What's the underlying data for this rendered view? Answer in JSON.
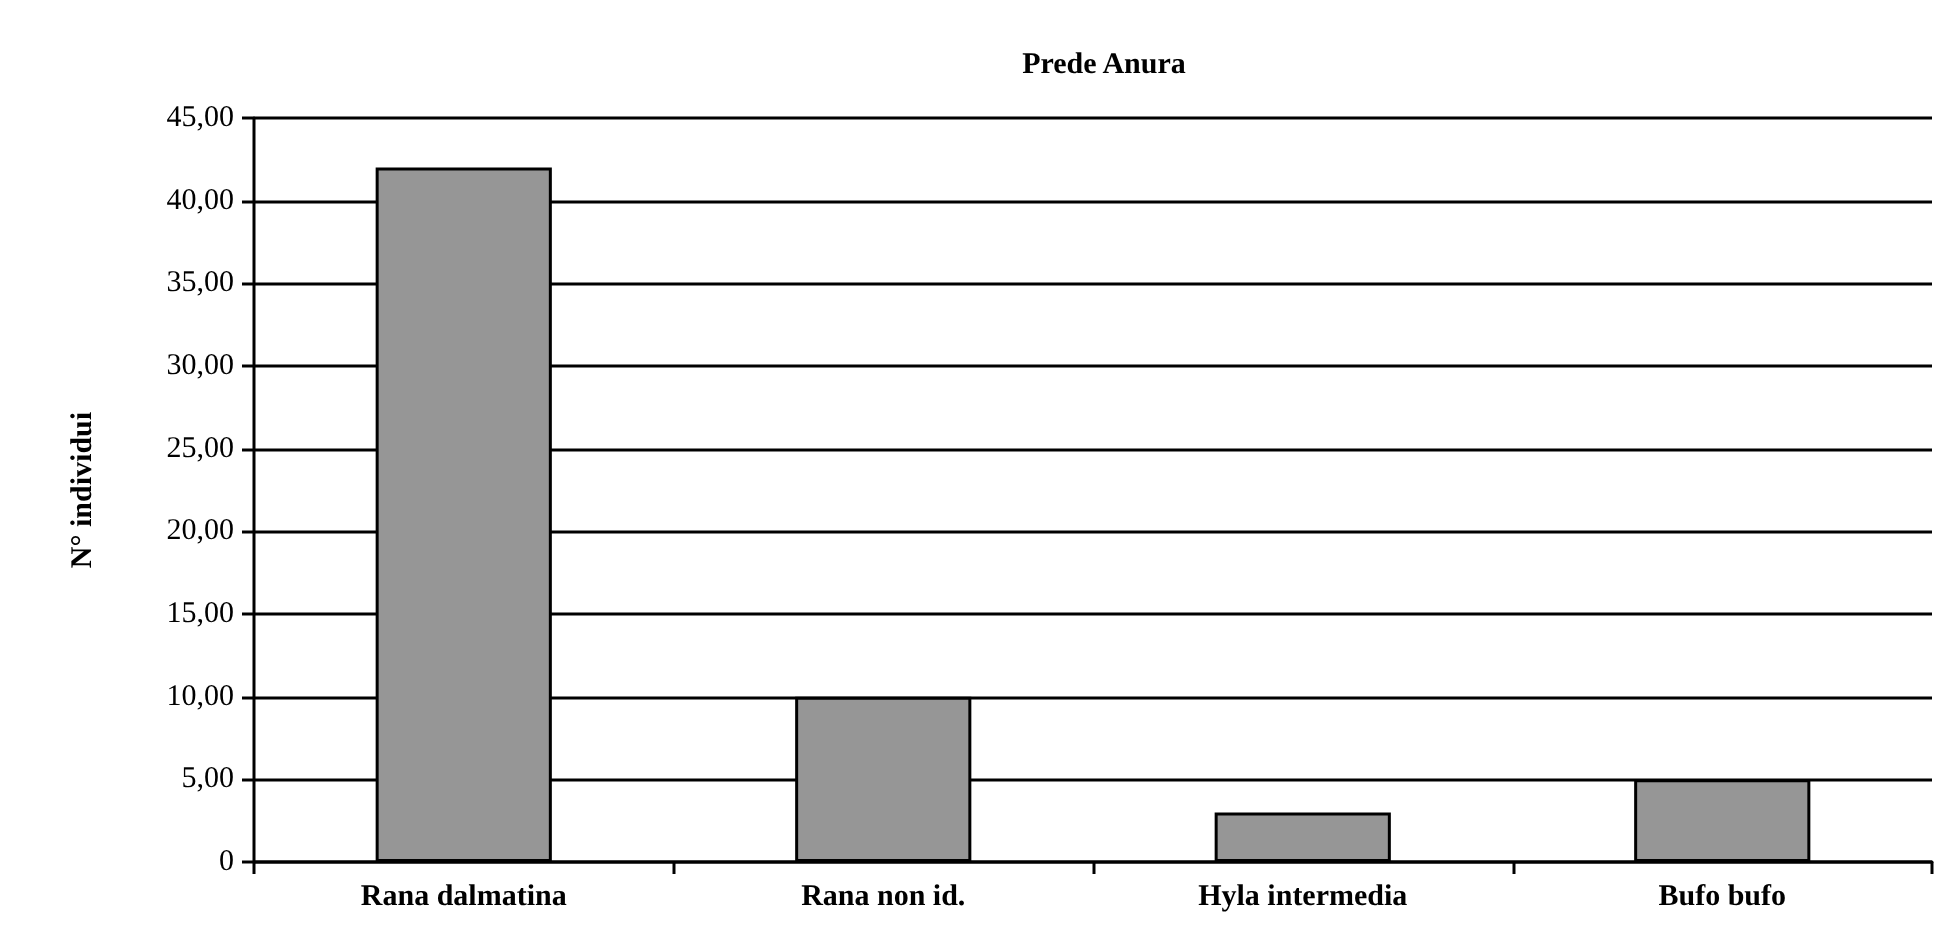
{
  "chart_data": {
    "type": "bar",
    "title": "Prede Anura",
    "ylabel": "N° individui",
    "categories": [
      "Rana dalmatina",
      "Rana non id.",
      "Hyla intermedia",
      "Bufo bufo"
    ],
    "values": [
      42,
      10,
      3,
      5
    ],
    "color": "#969696",
    "ylim": [
      0,
      45
    ],
    "yticks": [
      0,
      {
        "value": 5,
        "label": "5,00"
      },
      {
        "value": 10,
        "label": "10,00"
      },
      {
        "value": 15,
        "label": "15,00"
      },
      {
        "value": 20,
        "label": "20,00"
      },
      {
        "value": 25,
        "label": "25,00"
      },
      {
        "value": 30,
        "label": "30,00"
      },
      {
        "value": 35,
        "label": "35,00"
      },
      {
        "value": 40,
        "label": "40,00"
      },
      {
        "value": 45,
        "label": "45,00"
      }
    ],
    "grid": "y"
  }
}
